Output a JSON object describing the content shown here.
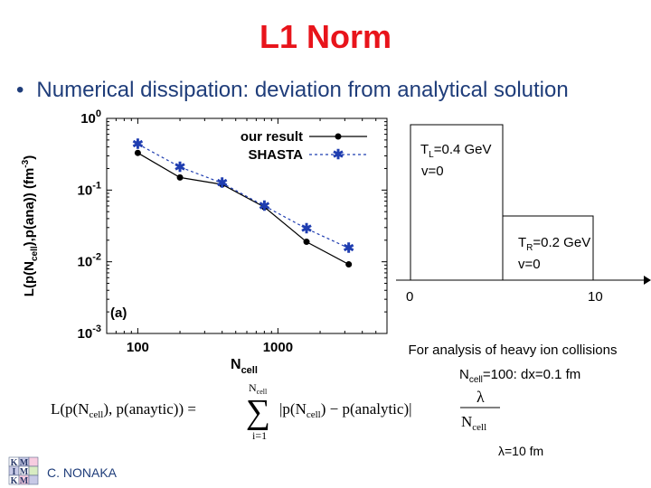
{
  "slide": {
    "title": "L1 Norm",
    "bullet": "Numerical dissipation: deviation from analytical solution",
    "author": "C. NONAKA"
  },
  "colors": {
    "title": "#e8141b",
    "bullet": "#1f3d7a",
    "shasta": "#1f3db0",
    "ours": "#000000"
  },
  "chart_data": {
    "type": "line",
    "xscale": "log",
    "yscale": "log",
    "xlim": [
      60,
      6000
    ],
    "ylim": [
      0.001,
      1
    ],
    "xlabel": "N",
    "xlabel_sub": "cell",
    "ylabel": "L(p(N_cell),p(ana)) (fm^-3)",
    "xticks": [
      100,
      1000
    ],
    "xtick_labels": [
      "100",
      "1000"
    ],
    "yticks": [
      1,
      0.1,
      0.01,
      0.001
    ],
    "ytick_bases": [
      "10",
      "10",
      "10",
      "10"
    ],
    "ytick_exps": [
      "0",
      "-1",
      "-2",
      "-3"
    ],
    "panel_label": "(a)",
    "legend_position": "top-right",
    "series": [
      {
        "name": "our result",
        "marker": "circle",
        "x": [
          100,
          200,
          400,
          800,
          1600,
          3200
        ],
        "y": [
          0.33,
          0.15,
          0.12,
          0.058,
          0.019,
          0.0092
        ]
      },
      {
        "name": "SHASTA",
        "marker": "star",
        "x": [
          100,
          200,
          400,
          800,
          1600,
          3200
        ],
        "y": [
          0.44,
          0.21,
          0.125,
          0.06,
          0.029,
          0.0155
        ]
      }
    ]
  },
  "diagram": {
    "left_label_main": "T",
    "left_label_sub": "L",
    "left_label_rest": "=0.4 GeV",
    "left_v": "v=0",
    "right_label_main": "T",
    "right_label_sub": "R",
    "right_label_rest": "=0.2 GeV",
    "right_v": "v=0",
    "x0": "0",
    "x10": "10"
  },
  "notes": {
    "analysis": "For analysis of heavy ion collisions",
    "ncell_main": "N",
    "ncell_sub": "cell",
    "ncell_rest": "=100: dx=0.1 fm",
    "lambda": "λ=10 fm"
  },
  "formula": {
    "lhs": "L(p(N",
    "lhs_sub": "cell",
    "lhs_mid": "), p(anaytic)) =",
    "sum_top": "N",
    "sum_top_sub": "cell",
    "sum_bottom": "i=1",
    "body": "|p(N",
    "body_sub": "cell",
    "body_rest": ") − p(analytic)|",
    "frac_num": "λ",
    "frac_den": "N",
    "frac_den_sub": "cell"
  },
  "logo": {
    "letters": [
      "K",
      "M",
      "I",
      "M",
      "K",
      "M"
    ]
  }
}
